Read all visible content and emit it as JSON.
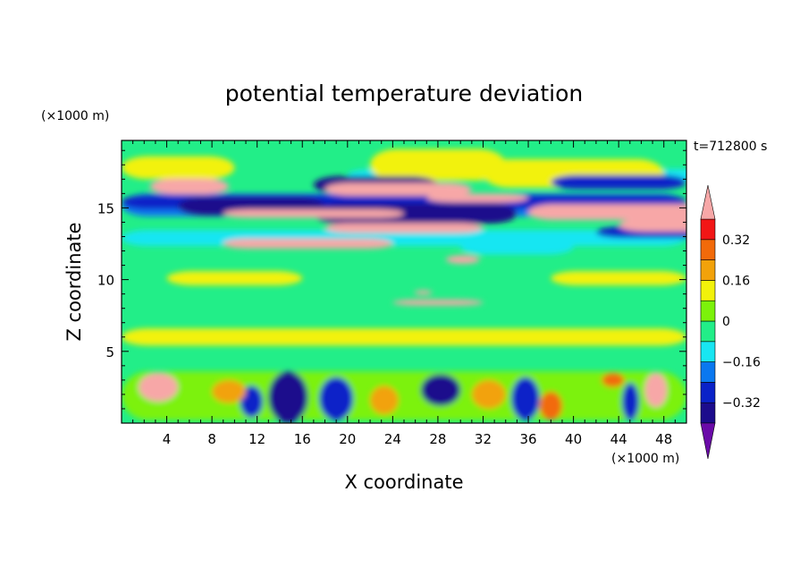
{
  "chart_data": {
    "type": "heatmap",
    "title": "potential temperature deviation",
    "xlabel": "X coordinate",
    "ylabel": "Z coordinate",
    "x_unit_label": "(×1000 m)",
    "y_unit_label": "(×1000 m)",
    "time_label": "t=712800 s",
    "x_ticks": [
      4,
      8,
      12,
      16,
      20,
      24,
      28,
      32,
      36,
      40,
      44,
      48
    ],
    "y_ticks": [
      5,
      10,
      15
    ],
    "xlim": [
      0,
      50
    ],
    "ylim": [
      0,
      19.7
    ],
    "grid": false,
    "colorbar": {
      "levels": [
        -0.4,
        -0.32,
        -0.24,
        -0.16,
        -0.08,
        0,
        0.08,
        0.16,
        0.24,
        0.32,
        0.4
      ],
      "tick_labels": [
        {
          "value": 0.32,
          "label": "0.32"
        },
        {
          "value": 0.16,
          "label": "0.16"
        },
        {
          "value": 0,
          "label": "0"
        },
        {
          "value": -0.16,
          "label": "−0.16"
        },
        {
          "value": -0.32,
          "label": "−0.32"
        }
      ],
      "colors": [
        "#6a0aa8",
        "#1c0c8c",
        "#0a22c8",
        "#0a78f0",
        "#18e6f2",
        "#22ee88",
        "#7cf20a",
        "#f2f20a",
        "#f2a20a",
        "#f26a0a",
        "#f21616",
        "#f7a7a7"
      ],
      "extend": "both"
    },
    "features": [
      {
        "x": 0,
        "w": 50,
        "z": 15.2,
        "h": 1.6,
        "v": -0.22
      },
      {
        "x": 0,
        "w": 50,
        "z": 12.9,
        "h": 1.1,
        "v": -0.13
      },
      {
        "x": 0,
        "w": 50,
        "z": 15.4,
        "h": 1.0,
        "v": -0.3
      },
      {
        "x": 20,
        "w": 50,
        "z": 17.3,
        "h": 0.8,
        "v": -0.12
      },
      {
        "x": 0,
        "w": 50,
        "z": 1.9,
        "h": 3.4,
        "v": 0.04
      },
      {
        "x": 0,
        "w": 50,
        "z": 6.0,
        "h": 1.2,
        "v": 0.09
      },
      {
        "x": 4,
        "w": 12,
        "z": 10.1,
        "h": 1.0,
        "v": 0.1
      },
      {
        "x": 38,
        "w": 12,
        "z": 10.1,
        "h": 1.0,
        "v": 0.1
      },
      {
        "x": 22,
        "w": 12,
        "z": 18.0,
        "h": 2.2,
        "v": 0.09
      },
      {
        "x": 32,
        "w": 16,
        "z": 17.4,
        "h": 2.0,
        "v": 0.1
      },
      {
        "x": 0,
        "w": 10,
        "z": 17.8,
        "h": 1.6,
        "v": 0.1
      },
      {
        "x": 30,
        "w": 10,
        "z": 12.3,
        "h": 1.1,
        "v": -0.12
      },
      {
        "x": 5,
        "w": 13,
        "z": 15.1,
        "h": 1.3,
        "v": -0.36
      },
      {
        "x": 17,
        "w": 18,
        "z": 14.6,
        "h": 1.4,
        "v": -0.38
      },
      {
        "x": 38,
        "w": 12,
        "z": 16.8,
        "h": 1.0,
        "v": -0.3
      },
      {
        "x": 42,
        "w": 12,
        "z": 13.3,
        "h": 0.8,
        "v": -0.3
      },
      {
        "x": 17,
        "w": 11,
        "z": 16.6,
        "h": 1.2,
        "v": -0.33
      },
      {
        "x": 2.5,
        "w": 7,
        "z": 16.5,
        "h": 1.1,
        "v": 0.42
      },
      {
        "x": 18,
        "w": 13,
        "z": 16.3,
        "h": 0.9,
        "v": 0.42
      },
      {
        "x": 9,
        "w": 16,
        "z": 14.6,
        "h": 0.6,
        "v": 0.42
      },
      {
        "x": 9,
        "w": 15,
        "z": 12.5,
        "h": 0.7,
        "v": 0.42
      },
      {
        "x": 18,
        "w": 14,
        "z": 13.6,
        "h": 0.7,
        "v": 0.42
      },
      {
        "x": 36,
        "w": 30,
        "z": 14.7,
        "h": 1.1,
        "v": 0.42
      },
      {
        "x": 44,
        "w": 14,
        "z": 13.8,
        "h": 0.9,
        "v": 0.42
      },
      {
        "x": 27,
        "w": 9,
        "z": 15.7,
        "h": 0.6,
        "v": 0.42
      },
      {
        "x": 28.7,
        "w": 3,
        "z": 11.4,
        "h": 0.6,
        "v": 0.42
      },
      {
        "x": 24,
        "w": 8,
        "z": 8.4,
        "h": 0.4,
        "v": 0.42
      },
      {
        "x": 25.9,
        "w": 1.6,
        "z": 9.1,
        "h": 0.3,
        "v": 0.42
      },
      {
        "x": 1.5,
        "w": 3.5,
        "z": 2.5,
        "h": 2.0,
        "v": 0.42
      },
      {
        "x": 13,
        "w": 3.5,
        "z": 1.8,
        "h": 3.6,
        "v": -0.4
      },
      {
        "x": 10.5,
        "w": 2,
        "z": 1.5,
        "h": 2.2,
        "v": -0.3
      },
      {
        "x": 17.5,
        "w": 3,
        "z": 1.7,
        "h": 3.0,
        "v": -0.3
      },
      {
        "x": 26.5,
        "w": 3.5,
        "z": 2.3,
        "h": 2.2,
        "v": -0.38
      },
      {
        "x": 34.5,
        "w": 2.5,
        "z": 1.7,
        "h": 3.0,
        "v": -0.3
      },
      {
        "x": 37,
        "w": 2,
        "z": 1.2,
        "h": 2.0,
        "v": 0.3
      },
      {
        "x": 46.3,
        "w": 2,
        "z": 2.3,
        "h": 2.4,
        "v": 0.42
      },
      {
        "x": 44.3,
        "w": 1.5,
        "z": 1.5,
        "h": 2.6,
        "v": -0.3
      },
      {
        "x": 42.5,
        "w": 2,
        "z": 3.0,
        "h": 1.0,
        "v": 0.3
      },
      {
        "x": 8,
        "w": 3,
        "z": 2.2,
        "h": 1.6,
        "v": 0.2
      },
      {
        "x": 31,
        "w": 3,
        "z": 2.0,
        "h": 2.0,
        "v": 0.2
      },
      {
        "x": 22,
        "w": 2.5,
        "z": 1.6,
        "h": 2.0,
        "v": 0.2
      }
    ]
  }
}
